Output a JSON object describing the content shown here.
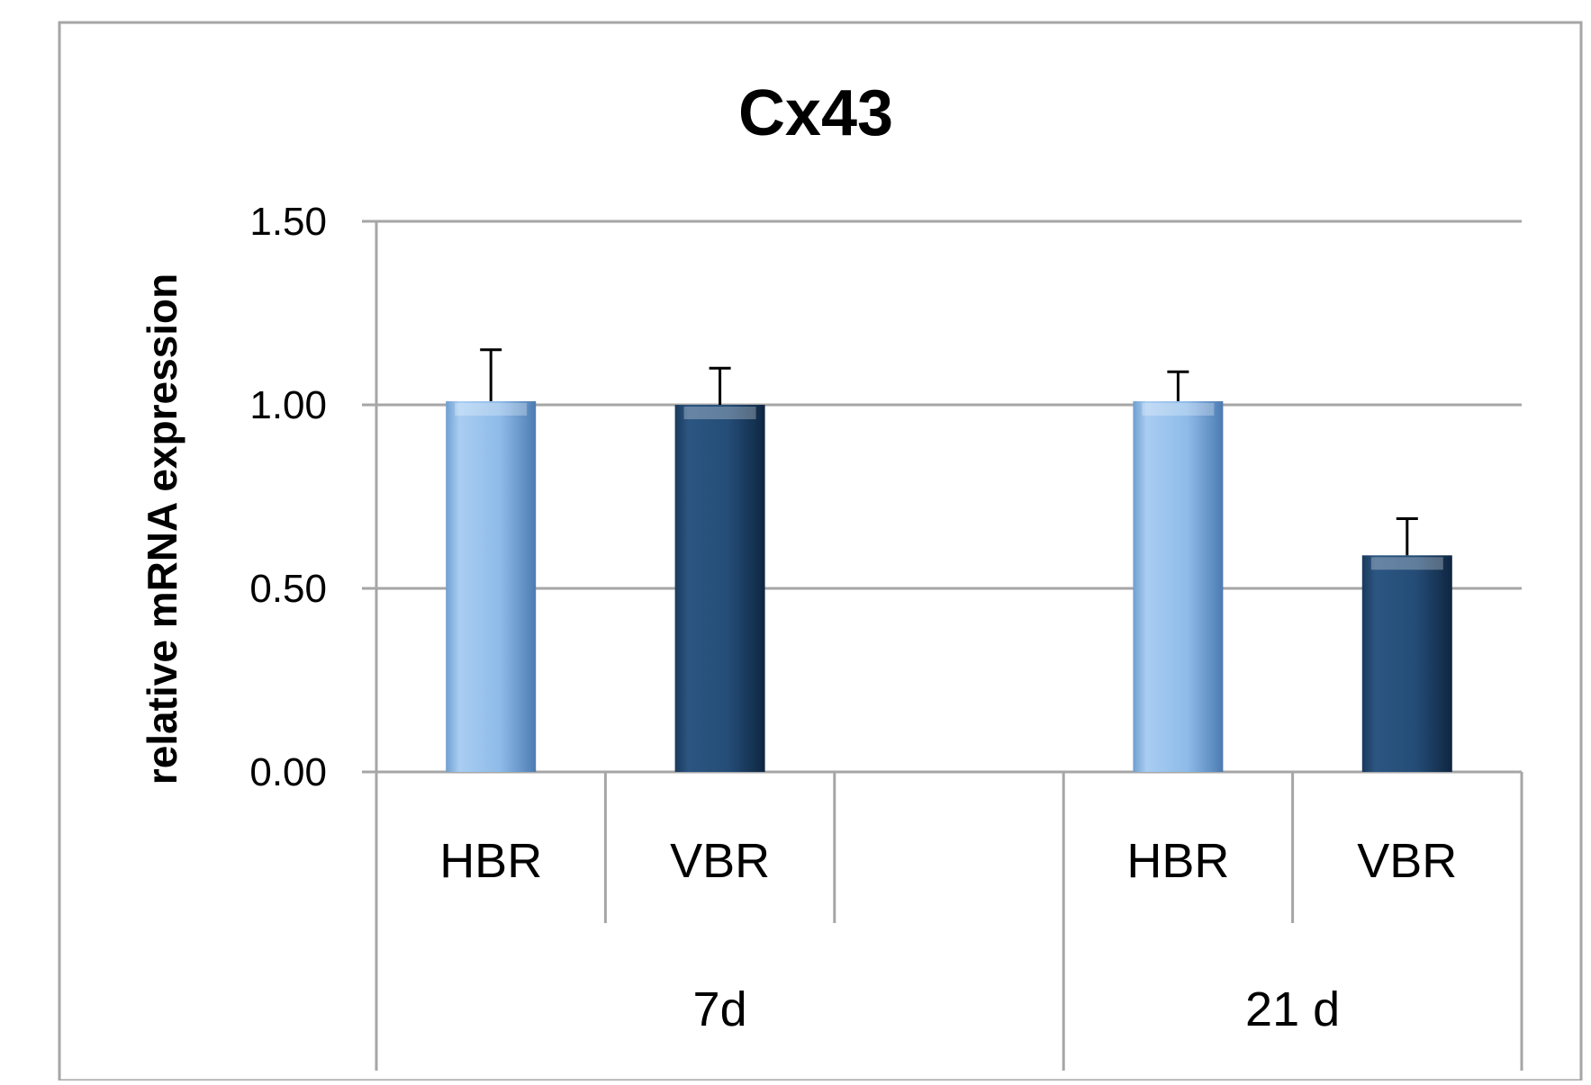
{
  "chart_data": {
    "type": "bar",
    "title": "Cx43",
    "xlabel": "",
    "ylabel": "relative mRNA expression",
    "ylim": [
      0,
      1.5
    ],
    "yticks": [
      "0.00",
      "0.50",
      "1.00",
      "1.50"
    ],
    "ytick_values": [
      0,
      0.5,
      1.0,
      1.5
    ],
    "grid": true,
    "legend": "none",
    "groups": [
      {
        "label": "7d",
        "slots": [
          {
            "label": "HBR",
            "value": 1.01,
            "error": 0.14
          },
          {
            "label": "VBR",
            "value": 1.0,
            "error": 0.1
          },
          {
            "label": "",
            "value": null,
            "error": null
          }
        ]
      },
      {
        "label": "21 d",
        "slots": [
          {
            "label": "HBR",
            "value": 1.01,
            "error": 0.08
          },
          {
            "label": "VBR",
            "value": 0.59,
            "error": 0.1
          }
        ]
      }
    ],
    "colors": {
      "HBR": "#8fbbe8",
      "VBR": "#234c75",
      "gridline": "#a6a6a6",
      "frame": "#a6a6a6"
    }
  }
}
